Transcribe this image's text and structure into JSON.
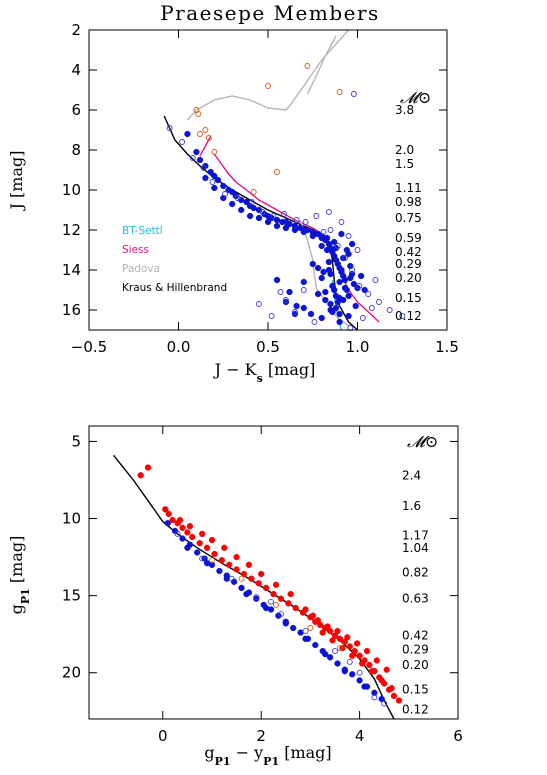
{
  "chart_data": [
    {
      "type": "scatter",
      "title": "Praesepe Members",
      "xlabel": "J − K",
      "xlabel_sub": "s",
      "xlabel_unit": " [mag]",
      "ylabel": "J [mag]",
      "xlim": [
        -0.5,
        1.5
      ],
      "ylim": [
        17,
        2
      ],
      "y_inverted": true,
      "x_ticks": [
        "−0.5",
        "0.0",
        "0.5",
        "1.0",
        "1.5"
      ],
      "x_tick_values": [
        -0.5,
        0.0,
        0.5,
        1.0,
        1.5
      ],
      "y_ticks": [
        "2",
        "4",
        "6",
        "8",
        "10",
        "12",
        "14",
        "16"
      ],
      "y_tick_values": [
        2,
        4,
        6,
        8,
        10,
        12,
        14,
        16
      ],
      "mass_header": "𝓜⊙",
      "mass_labels": [
        {
          "label": "3.8",
          "y": 6.0
        },
        {
          "label": "2.0",
          "y": 8.0
        },
        {
          "label": "1.5",
          "y": 8.7
        },
        {
          "label": "1.11",
          "y": 9.9
        },
        {
          "label": "0.98",
          "y": 10.6
        },
        {
          "label": "0.75",
          "y": 11.4
        },
        {
          "label": "0.59",
          "y": 12.4
        },
        {
          "label": "0.42",
          "y": 13.1
        },
        {
          "label": "0.29",
          "y": 13.7
        },
        {
          "label": "0.20",
          "y": 14.4
        },
        {
          "label": "0.15",
          "y": 15.4
        },
        {
          "label": "0.12",
          "y": 16.3
        }
      ],
      "legend": [
        {
          "name": "BT-Settl",
          "color": "#19c3e6"
        },
        {
          "name": "Siess",
          "color": "#e0148c"
        },
        {
          "name": "Padova",
          "color": "#b4b4b4"
        },
        {
          "name": "Kraus & Hillenbrand",
          "color": "#000000"
        }
      ],
      "series": [
        {
          "name": "Kraus & Hillenbrand",
          "kind": "line",
          "color": "#000000",
          "x": [
            -0.08,
            -0.02,
            0.05,
            0.12,
            0.2,
            0.3,
            0.4,
            0.5,
            0.6,
            0.7,
            0.78,
            0.84,
            0.86,
            0.87,
            0.88,
            0.9,
            0.95,
            1.0
          ],
          "y": [
            6.3,
            7.5,
            8.2,
            8.8,
            9.4,
            10.0,
            10.5,
            11.0,
            11.4,
            11.8,
            12.1,
            12.6,
            13.5,
            14.5,
            15.2,
            15.8,
            16.6,
            17.0
          ]
        },
        {
          "name": "BT-Settl",
          "kind": "line",
          "color": "#19c3e6",
          "x": [
            0.86,
            0.87,
            0.88,
            0.89,
            0.9,
            0.91
          ],
          "y": [
            14.5,
            15.2,
            15.8,
            16.3,
            16.7,
            17.0
          ]
        },
        {
          "name": "Siess",
          "kind": "line",
          "color": "#e0148c",
          "x": [
            0.2,
            0.24,
            0.28,
            0.32,
            0.38,
            0.45,
            0.55,
            0.65,
            0.75,
            0.82,
            0.86,
            0.9,
            0.95,
            1.0,
            1.05,
            1.12
          ],
          "y": [
            8.2,
            8.7,
            9.2,
            9.6,
            10.0,
            10.5,
            11.0,
            11.5,
            11.9,
            12.3,
            13.0,
            14.0,
            15.0,
            15.6,
            16.0,
            16.6
          ]
        },
        {
          "name": "Padova",
          "kind": "line",
          "color": "#b4b4b4",
          "x": [
            0.05,
            0.1,
            0.2,
            0.3,
            0.4,
            0.5,
            0.6,
            0.62,
            0.7,
            0.8,
            0.9,
            0.95
          ],
          "y": [
            6.5,
            6.0,
            5.5,
            5.3,
            5.5,
            5.9,
            6.0,
            5.8,
            4.8,
            3.5,
            2.5,
            2.0
          ]
        },
        {
          "name": "Padova",
          "kind": "line",
          "color": "#b4b4b4",
          "x": [
            0.72,
            0.77,
            0.82,
            0.88
          ],
          "y": [
            5.2,
            4.3,
            3.3,
            2.3
          ]
        },
        {
          "name": "Padova",
          "kind": "line",
          "color": "#b4b4b4",
          "x": [
            0.68,
            0.72,
            0.75,
            0.76,
            0.77,
            0.8,
            0.84,
            0.88,
            0.95
          ],
          "y": [
            11.5,
            12.5,
            13.5,
            14.3,
            14.9,
            15.3,
            15.8,
            16.3,
            16.8
          ]
        },
        {
          "name": "",
          "kind": "line",
          "color": "#e0148c",
          "x": [
            0.12,
            0.15,
            0.18
          ],
          "y": [
            8.3,
            7.8,
            7.3
          ]
        },
        {
          "name": "",
          "kind": "scatter-filled",
          "color": "#0a14d2",
          "x": [
            0.05,
            0.1,
            0.12,
            0.15,
            0.18,
            0.2,
            0.22,
            0.25,
            0.28,
            0.3,
            0.32,
            0.35,
            0.38,
            0.4,
            0.42,
            0.45,
            0.48,
            0.5,
            0.52,
            0.55,
            0.58,
            0.6,
            0.62,
            0.65,
            0.68,
            0.7,
            0.72,
            0.75,
            0.78,
            0.8,
            0.82,
            0.84,
            0.85,
            0.86,
            0.87,
            0.88,
            0.89,
            0.9,
            0.91,
            0.92,
            0.93,
            0.83,
            0.84,
            0.85,
            0.86,
            0.87,
            0.88,
            0.89,
            0.9,
            0.91,
            0.92,
            0.95,
            0.97,
            0.8,
            0.82,
            0.85,
            0.88,
            0.9,
            0.93,
            0.95,
            0.98,
            0.78,
            0.82,
            0.86,
            0.9,
            0.94,
            0.96,
            0.99,
            0.8,
            0.84,
            0.88,
            0.92,
            0.96,
            1.0,
            0.62,
            0.66,
            0.7,
            0.74,
            0.78,
            0.81,
            0.83,
            0.87,
            0.91,
            0.94,
            0.97,
            1.02,
            0.55,
            0.6,
            0.65,
            0.7,
            0.75,
            0.8,
            0.85,
            0.9,
            0.95,
            1.04,
            0.15,
            0.2,
            0.25,
            0.3,
            0.35,
            0.4,
            0.45,
            0.5,
            0.55,
            0.6,
            0.65,
            0.7,
            0.75,
            0.8
          ],
          "y": [
            7.2,
            8.1,
            8.5,
            8.8,
            9.1,
            9.3,
            9.5,
            9.8,
            10.0,
            10.1,
            10.3,
            10.5,
            10.6,
            10.8,
            10.9,
            11.0,
            11.2,
            11.3,
            11.4,
            11.5,
            11.6,
            11.6,
            11.7,
            11.8,
            11.9,
            12.0,
            12.0,
            12.1,
            12.2,
            12.3,
            12.5,
            12.7,
            12.9,
            13.1,
            13.3,
            13.5,
            13.7,
            13.9,
            14.1,
            14.3,
            14.5,
            13.0,
            13.6,
            14.2,
            14.8,
            15.0,
            15.3,
            15.6,
            14.6,
            14.0,
            13.4,
            13.2,
            14.2,
            14.4,
            15.1,
            15.7,
            15.9,
            15.4,
            14.9,
            15.3,
            14.7,
            13.9,
            15.5,
            16.1,
            16.2,
            15.0,
            14.4,
            15.8,
            12.8,
            14.0,
            12.9,
            15.5,
            13.8,
            14.9,
            15.1,
            15.8,
            14.6,
            16.2,
            15.2,
            14.1,
            12.4,
            12.6,
            12.2,
            13.0,
            12.7,
            14.3,
            14.5,
            15.6,
            16.2,
            15.9,
            13.7,
            16.4,
            16.0,
            16.6,
            16.3,
            15.0,
            9.4,
            9.9,
            10.4,
            10.7,
            11.0,
            11.3,
            11.4,
            11.6,
            11.8,
            11.9,
            12.0,
            12.1,
            12.3,
            12.4
          ]
        },
        {
          "name": "",
          "kind": "scatter-open",
          "color": "#3c3cdc",
          "x": [
            -0.05,
            0.02,
            0.08,
            0.14,
            0.19,
            0.26,
            0.33,
            0.41,
            0.47,
            0.53,
            0.59,
            0.66,
            0.71,
            0.77,
            0.81,
            0.85,
            0.89,
            0.93,
            0.97,
            1.01,
            1.06,
            1.12,
            1.18,
            1.25,
            0.6,
            0.65,
            0.7,
            0.76,
            0.96,
            1.03,
            1.1,
            0.45,
            0.52,
            0.57,
            0.95,
            1.0,
            0.91,
            0.84,
            1.08,
            0.98
          ],
          "y": [
            6.9,
            7.6,
            8.4,
            8.9,
            9.6,
            10.2,
            10.4,
            10.6,
            11.1,
            11.3,
            11.2,
            11.5,
            11.6,
            11.3,
            12.1,
            12.0,
            12.8,
            13.4,
            14.0,
            14.8,
            15.2,
            15.6,
            16.0,
            16.3,
            15.5,
            16.1,
            15.0,
            16.6,
            16.9,
            16.4,
            14.5,
            15.7,
            16.3,
            15.1,
            12.3,
            13.0,
            11.6,
            11.1,
            15.9,
            5.2
          ]
        },
        {
          "name": "",
          "kind": "scatter-open",
          "color": "#d25a14",
          "x": [
            0.1,
            0.11,
            0.12,
            0.15,
            0.17,
            0.2,
            0.5,
            0.72,
            0.9,
            0.55,
            0.42
          ],
          "y": [
            6.0,
            6.2,
            7.2,
            7.0,
            7.4,
            8.1,
            4.8,
            3.8,
            5.1,
            9.1,
            10.1
          ]
        }
      ]
    },
    {
      "type": "scatter",
      "title": "",
      "xlabel": "g",
      "xlabel_sub1": "P1",
      "xlabel_mid": " − y",
      "xlabel_sub2": "P1",
      "xlabel_unit": " [mag]",
      "ylabel": "g",
      "ylabel_sub": "P1",
      "ylabel_unit": " [mag]",
      "xlim": [
        -1.5,
        6
      ],
      "ylim": [
        23,
        4
      ],
      "y_inverted": true,
      "x_ticks": [
        "0",
        "2",
        "4",
        "6"
      ],
      "x_tick_values": [
        0,
        2,
        4,
        6
      ],
      "y_ticks": [
        "5",
        "10",
        "15",
        "20"
      ],
      "y_tick_values": [
        5,
        10,
        15,
        20
      ],
      "mass_header": "𝓜⊙",
      "mass_labels": [
        {
          "label": "2.4",
          "y": 7.2
        },
        {
          "label": "1.6",
          "y": 9.2
        },
        {
          "label": "1.17",
          "y": 11.1
        },
        {
          "label": "1.04",
          "y": 11.9
        },
        {
          "label": "0.82",
          "y": 13.5
        },
        {
          "label": "0.63",
          "y": 15.2
        },
        {
          "label": "0.42",
          "y": 17.6
        },
        {
          "label": "0.29",
          "y": 18.5
        },
        {
          "label": "0.20",
          "y": 19.5
        },
        {
          "label": "0.15",
          "y": 21.1
        },
        {
          "label": "0.12",
          "y": 22.4
        }
      ],
      "series": [
        {
          "name": "",
          "kind": "line",
          "color": "#000000",
          "x": [
            -1.0,
            -0.6,
            -0.2,
            0.0,
            0.3,
            0.7,
            1.2,
            1.7,
            2.2,
            2.7,
            3.2,
            3.6,
            4.0,
            4.3,
            4.5,
            4.7
          ],
          "y": [
            5.9,
            7.5,
            9.3,
            10.2,
            11.0,
            11.9,
            12.9,
            13.8,
            14.8,
            15.8,
            16.9,
            17.9,
            19.1,
            20.4,
            21.8,
            23.0
          ]
        },
        {
          "name": "",
          "kind": "scatter-filled",
          "color": "#ff0000",
          "x": [
            -0.45,
            -0.3,
            0.05,
            0.12,
            0.2,
            0.3,
            0.4,
            0.5,
            0.6,
            0.75,
            0.9,
            1.05,
            1.2,
            1.35,
            1.5,
            1.65,
            1.8,
            1.95,
            2.1,
            2.25,
            2.4,
            2.55,
            2.7,
            2.85,
            3.0,
            3.1,
            3.2,
            3.3,
            3.4,
            3.5,
            3.6,
            3.7,
            3.8,
            3.9,
            4.0,
            4.1,
            4.2,
            4.3,
            4.4,
            4.5,
            4.6,
            4.7,
            4.8,
            3.25,
            3.45,
            3.65,
            3.85,
            4.05,
            4.25,
            4.45,
            4.65,
            2.9,
            3.05,
            3.15,
            3.35,
            3.55,
            3.75,
            3.95,
            4.15,
            4.35,
            4.55,
            0.35,
            0.55,
            0.8,
            1.0,
            1.25,
            1.5,
            1.75,
            2.0,
            2.3,
            2.6
          ],
          "y": [
            7.2,
            6.7,
            9.4,
            9.7,
            10.1,
            10.3,
            10.6,
            10.9,
            11.2,
            11.6,
            11.9,
            12.3,
            12.7,
            13.0,
            13.3,
            13.6,
            13.9,
            14.2,
            14.5,
            14.9,
            15.2,
            15.5,
            15.8,
            16.1,
            16.4,
            16.7,
            16.9,
            17.1,
            17.3,
            17.6,
            17.8,
            18.0,
            18.3,
            18.6,
            18.9,
            19.2,
            19.5,
            19.9,
            20.3,
            20.7,
            21.1,
            21.5,
            21.8,
            17.4,
            17.9,
            18.4,
            18.9,
            19.4,
            19.9,
            20.5,
            21.0,
            15.9,
            16.3,
            16.6,
            17.0,
            17.3,
            17.7,
            18.1,
            18.6,
            19.2,
            19.8,
            10.1,
            10.5,
            11.0,
            11.4,
            11.9,
            12.5,
            13.0,
            13.6,
            14.3,
            14.9
          ]
        },
        {
          "name": "",
          "kind": "scatter-filled",
          "color": "#0a14d2",
          "x": [
            0.1,
            0.25,
            0.4,
            0.55,
            0.7,
            0.85,
            1.0,
            1.15,
            1.3,
            1.45,
            1.6,
            1.75,
            1.9,
            2.05,
            2.2,
            2.35,
            2.5,
            2.65,
            2.8,
            2.95,
            3.1,
            3.25,
            3.4,
            3.55,
            3.7,
            3.85,
            4.0,
            4.15,
            4.3,
            4.45,
            0.5,
            0.9,
            1.3,
            1.7,
            2.1,
            2.5,
            2.9,
            3.3,
            3.7,
            4.1
          ],
          "y": [
            10.3,
            10.8,
            11.3,
            11.7,
            12.2,
            12.6,
            13.0,
            13.4,
            13.7,
            14.1,
            14.5,
            14.8,
            15.2,
            15.6,
            15.9,
            16.3,
            16.7,
            17.1,
            17.4,
            17.8,
            18.2,
            18.6,
            19.0,
            19.4,
            19.8,
            20.1,
            20.5,
            20.9,
            21.3,
            21.7,
            11.9,
            12.9,
            13.9,
            14.9,
            15.8,
            16.8,
            17.8,
            18.8,
            19.9,
            20.9
          ]
        },
        {
          "name": "",
          "kind": "scatter-open",
          "color": "#3c3cdc",
          "x": [
            0.3,
            0.8,
            1.4,
            1.9,
            2.4,
            2.9,
            3.5,
            4.0,
            4.5,
            4.3,
            3.8,
            2.2
          ],
          "y": [
            11.0,
            12.6,
            13.9,
            15.1,
            16.2,
            17.3,
            18.6,
            20.0,
            22.0,
            21.6,
            19.3,
            15.4
          ]
        },
        {
          "name": "",
          "kind": "scatter-open",
          "color": "#d25a14",
          "x": [
            1.0,
            1.6,
            2.3,
            3.0,
            3.6
          ],
          "y": [
            12.7,
            13.9,
            15.6,
            17.1,
            18.4
          ]
        }
      ]
    }
  ]
}
